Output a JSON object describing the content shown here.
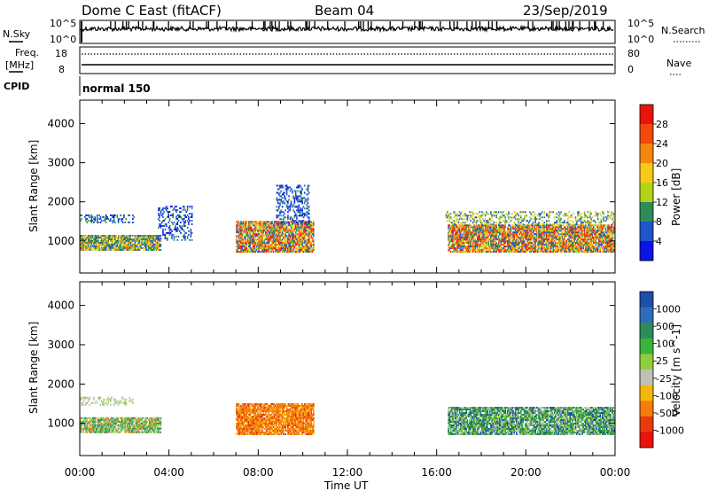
{
  "header": {
    "title": "Dome C East (fitACF)",
    "beam": "Beam 04",
    "date": "23/Sep/2019"
  },
  "strips": {
    "nsky_label": "N.Sky",
    "nsky_top_tick": "10^5",
    "nsky_bottom_tick": "10^0",
    "nsearch_label": "N.Search",
    "nsearch_top_tick": "10^5",
    "nsearch_bottom_tick": "10^0",
    "freq_label": "Freq.",
    "freq_unit": "[MHz]",
    "freq_top_tick": "18",
    "freq_bottom_tick": "8",
    "nave_label": "Nave",
    "nave_top_tick": "80",
    "nave_bottom_tick": "0",
    "cpid_label": "CPID",
    "cpid_value": "normal 150"
  },
  "chart_data": [
    {
      "type": "heatmap",
      "name": "power",
      "ylabel": "Slant Range [km]",
      "ylim": [
        180,
        4600
      ],
      "yticks": [
        1000,
        2000,
        3000,
        4000
      ],
      "colorbar_label": "Power [dB]",
      "colorbar_ticks": [
        "28",
        "24",
        "20",
        "16",
        "12",
        "8",
        "4"
      ],
      "colorbar_colors": [
        "#e8140c",
        "#f04a0a",
        "#f5860f",
        "#f9c818",
        "#b5d21a",
        "#2e8b5a",
        "#1e56c9",
        "#0a14e6"
      ],
      "regions": [
        {
          "t0": 0.0,
          "t1": 2.4,
          "r0": 1450,
          "r1": 1650,
          "kind": "sparse-blue"
        },
        {
          "t0": 0.0,
          "t1": 3.6,
          "r0": 750,
          "r1": 1150,
          "kind": "mixed"
        },
        {
          "t0": 3.5,
          "t1": 5.0,
          "r0": 1000,
          "r1": 1900,
          "kind": "sparse-blue"
        },
        {
          "t0": 7.0,
          "t1": 10.5,
          "r0": 700,
          "r1": 1500,
          "kind": "intense"
        },
        {
          "t0": 8.8,
          "t1": 10.3,
          "r0": 1400,
          "r1": 2400,
          "kind": "sparse-blue"
        },
        {
          "t0": 16.5,
          "t1": 24.0,
          "r0": 700,
          "r1": 1400,
          "kind": "intense"
        },
        {
          "t0": 16.4,
          "t1": 24.0,
          "r0": 1400,
          "r1": 1750,
          "kind": "sparse-mixed"
        }
      ]
    },
    {
      "type": "heatmap",
      "name": "velocity",
      "ylabel": "Slant Range [km]",
      "ylim": [
        180,
        4600
      ],
      "yticks": [
        1000,
        2000,
        3000,
        4000
      ],
      "colorbar_label": "Velocity [m s^-1]",
      "colorbar_ticks": [
        "1000",
        "500",
        "100",
        "25",
        "-25",
        "-100",
        "-500",
        "-1000"
      ],
      "colorbar_colors": [
        "#1f4fa8",
        "#2f6cb8",
        "#2e8b5a",
        "#3ab33a",
        "#8fce3a",
        "#c0c0b8",
        "#f5b60c",
        "#f57c0a",
        "#e83a0a",
        "#e8140c"
      ],
      "regions": [
        {
          "t0": 0.0,
          "t1": 2.4,
          "r0": 1450,
          "r1": 1650,
          "kind": "grey"
        },
        {
          "t0": 0.0,
          "t1": 3.6,
          "r0": 750,
          "r1": 1150,
          "kind": "green-mixed"
        },
        {
          "t0": 7.0,
          "t1": 10.5,
          "r0": 700,
          "r1": 1500,
          "kind": "orange"
        },
        {
          "t0": 16.5,
          "t1": 24.0,
          "r0": 700,
          "r1": 1400,
          "kind": "teal-mixed"
        }
      ]
    }
  ],
  "x_axis": {
    "label": "Time UT",
    "ticks": [
      "00:00",
      "04:00",
      "08:00",
      "12:00",
      "16:00",
      "20:00",
      "00:00"
    ]
  },
  "y_axis_ticks": [
    "1000",
    "2000",
    "3000",
    "4000"
  ]
}
